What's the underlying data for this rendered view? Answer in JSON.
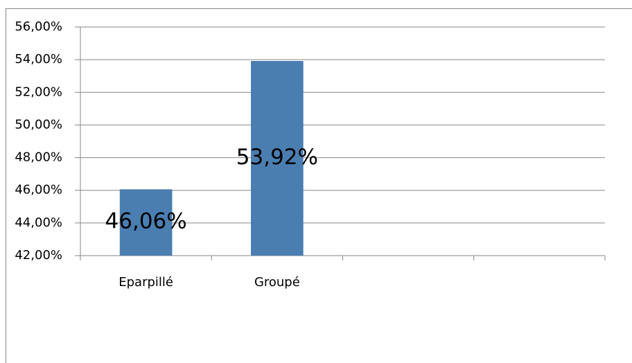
{
  "chart_data": {
    "type": "bar",
    "categories": [
      "Eparpillé",
      "Groupé",
      null,
      null
    ],
    "values": [
      46.06,
      53.92,
      null,
      null
    ],
    "value_labels": [
      "46,06%",
      "53,92%",
      null,
      null
    ],
    "color": "#4a7eb1",
    "ylim": [
      42,
      56
    ],
    "yticks": [
      {
        "value": 42,
        "label": "42,00%"
      },
      {
        "value": 44,
        "label": "44,00%"
      },
      {
        "value": 46,
        "label": "46,00%"
      },
      {
        "value": 48,
        "label": "48,00%"
      },
      {
        "value": 50,
        "label": "50,00%"
      },
      {
        "value": 52,
        "label": "52,00%"
      },
      {
        "value": 54,
        "label": "54,00%"
      },
      {
        "value": 56,
        "label": "56,00%"
      }
    ],
    "grid": true
  }
}
